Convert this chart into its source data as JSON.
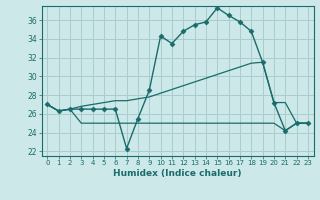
{
  "xlabel": "Humidex (Indice chaleur)",
  "background_color": "#cde8e8",
  "grid_color": "#aacccc",
  "line_color": "#1a6b6b",
  "xlim": [
    -0.5,
    23.5
  ],
  "ylim": [
    21.5,
    37.5
  ],
  "yticks": [
    22,
    24,
    26,
    28,
    30,
    32,
    34,
    36
  ],
  "xticks": [
    0,
    1,
    2,
    3,
    4,
    5,
    6,
    7,
    8,
    9,
    10,
    11,
    12,
    13,
    14,
    15,
    16,
    17,
    18,
    19,
    20,
    21,
    22,
    23
  ],
  "series": [
    {
      "x": [
        0,
        1,
        2,
        3,
        4,
        5,
        6,
        7,
        8,
        9,
        10,
        11,
        12,
        13,
        14,
        15,
        16,
        17,
        18,
        19,
        20,
        21,
        22,
        23
      ],
      "y": [
        27,
        26.3,
        26.5,
        26.5,
        26.5,
        26.5,
        26.5,
        22.3,
        25.5,
        28.5,
        34.3,
        33.5,
        34.8,
        35.5,
        35.8,
        37.3,
        36.5,
        35.8,
        34.8,
        31.5,
        27.2,
        24.2,
        25.0,
        25.0
      ],
      "marker": "D",
      "markersize": 2.5,
      "linewidth": 1.0
    },
    {
      "x": [
        0,
        1,
        2,
        3,
        4,
        5,
        6,
        7,
        8,
        9,
        10,
        11,
        12,
        13,
        14,
        15,
        16,
        17,
        18,
        19,
        20,
        21,
        22,
        23
      ],
      "y": [
        27,
        26.3,
        26.5,
        25.0,
        25.0,
        25.0,
        25.0,
        25.0,
        25.0,
        25.0,
        25.0,
        25.0,
        25.0,
        25.0,
        25.0,
        25.0,
        25.0,
        25.0,
        25.0,
        25.0,
        25.0,
        24.2,
        25.0,
        25.0
      ],
      "marker": null,
      "markersize": 0,
      "linewidth": 0.9
    },
    {
      "x": [
        0,
        1,
        2,
        3,
        4,
        5,
        6,
        7,
        8,
        9,
        10,
        11,
        12,
        13,
        14,
        15,
        16,
        17,
        18,
        19,
        20,
        21,
        22,
        23
      ],
      "y": [
        27.0,
        26.3,
        26.5,
        26.8,
        27.0,
        27.2,
        27.4,
        27.4,
        27.6,
        27.8,
        28.2,
        28.6,
        29.0,
        29.4,
        29.8,
        30.2,
        30.6,
        31.0,
        31.4,
        31.5,
        27.2,
        27.2,
        25.0,
        25.0
      ],
      "marker": null,
      "markersize": 0,
      "linewidth": 0.9
    }
  ]
}
